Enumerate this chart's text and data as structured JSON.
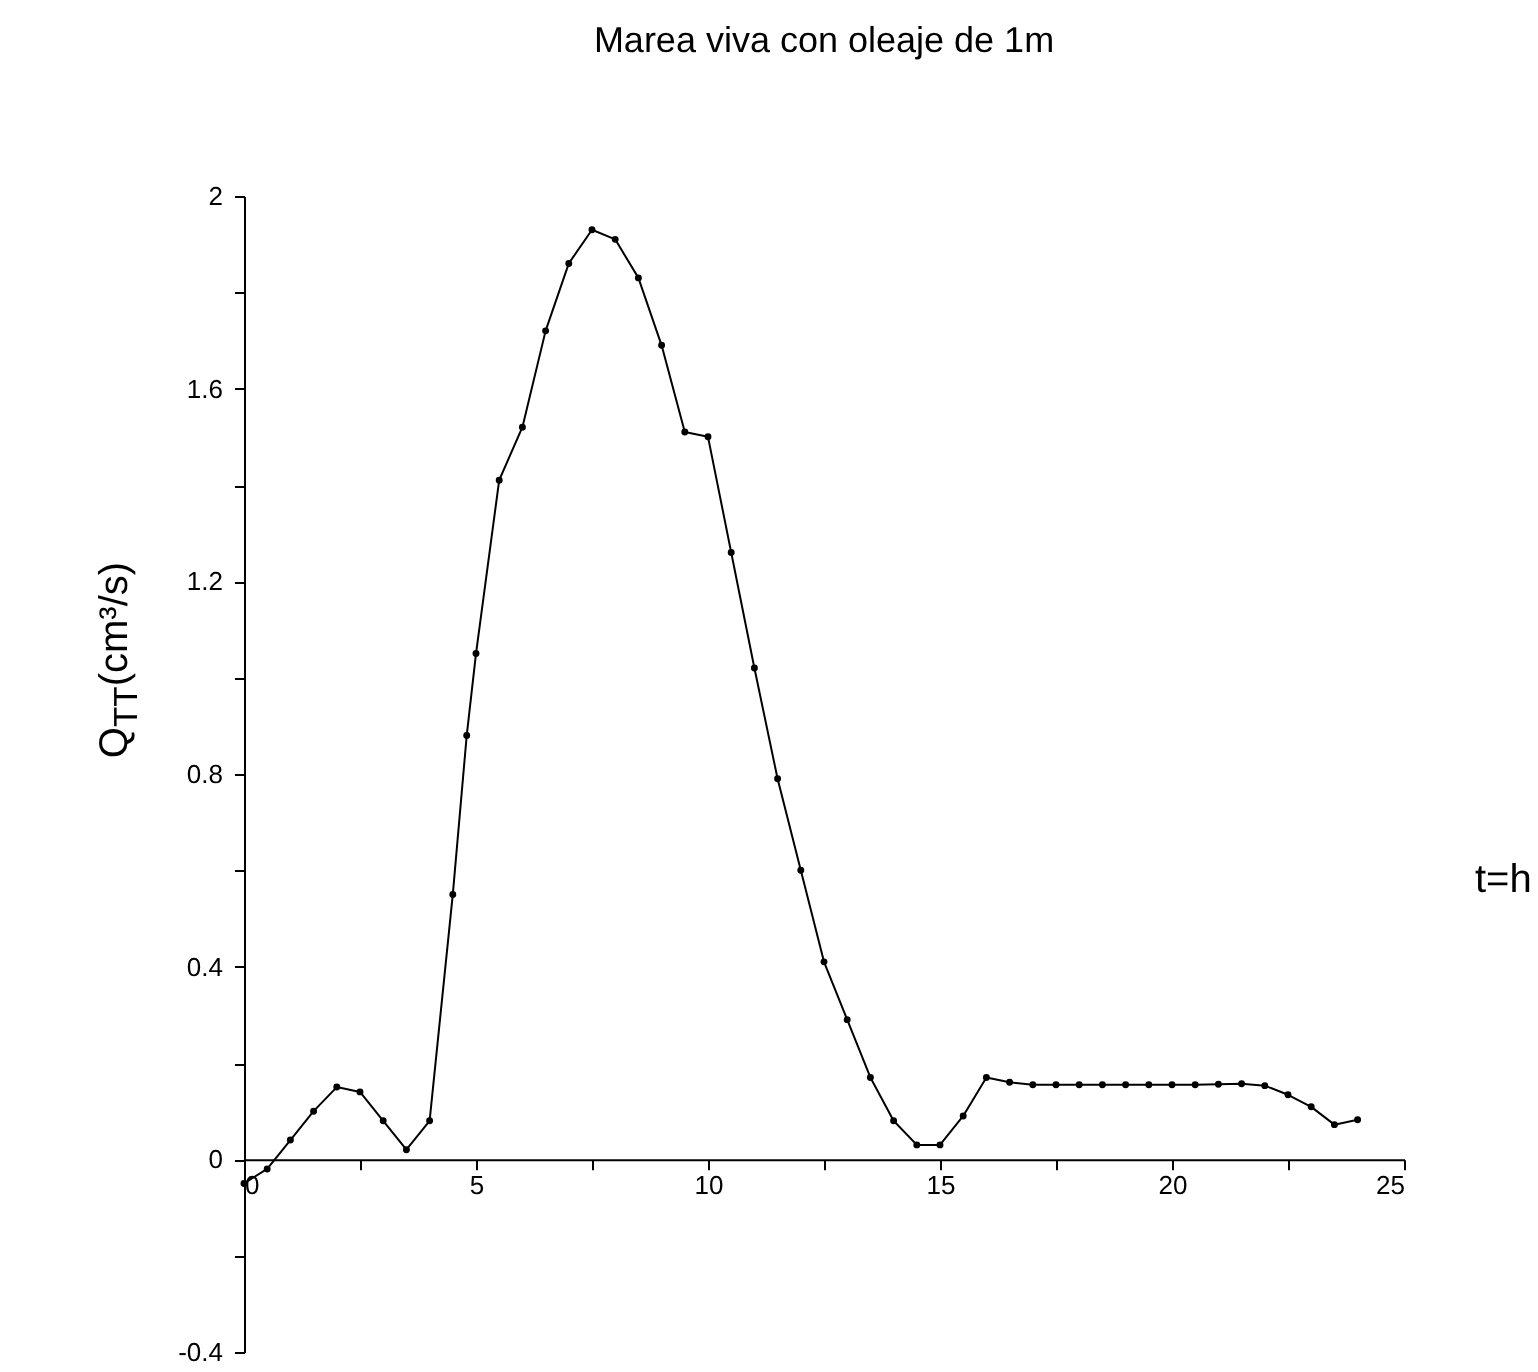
{
  "chart_data": {
    "type": "line",
    "title": "Marea viva con oleaje de 1m",
    "xlabel": "t=h",
    "ylabel": "Q$_{TT}$(cm³/s)",
    "x": [
      0,
      0.5,
      1,
      1.5,
      2,
      2.5,
      3,
      3.5,
      4,
      4.5,
      4.8,
      5,
      5.5,
      6,
      6.5,
      7,
      7.5,
      8,
      8.5,
      9,
      9.5,
      10,
      10.5,
      11,
      11.5,
      12,
      12.5,
      13,
      13.5,
      14,
      14.5,
      15,
      15.5,
      16,
      16.5,
      17,
      17.5,
      18,
      18.5,
      19,
      19.5,
      20,
      20.5,
      21,
      21.5,
      22,
      22.5,
      23,
      23.5,
      24
    ],
    "series": [
      {
        "color": "#000000",
        "values": [
          -0.05,
          -0.02,
          0.04,
          0.1,
          0.15,
          0.14,
          0.08,
          0.02,
          0.08,
          0.55,
          0.88,
          1.05,
          1.41,
          1.52,
          1.72,
          1.86,
          1.93,
          1.91,
          1.83,
          1.69,
          1.51,
          1.5,
          1.26,
          1.02,
          0.79,
          0.6,
          0.41,
          0.29,
          0.17,
          0.08,
          0.03,
          0.03,
          0.09,
          0.17,
          0.16,
          0.155,
          0.155,
          0.155,
          0.155,
          0.155,
          0.155,
          0.155,
          0.155,
          0.156,
          0.157,
          0.153,
          0.134,
          0.109,
          0.072,
          0.082
        ]
      }
    ],
    "xlim": [
      0,
      25
    ],
    "ylim": [
      -0.4,
      2
    ],
    "xticks": [
      0,
      {
        "value": 2.5,
        "label": null
      },
      5,
      {
        "value": 7.5,
        "label": null
      },
      10,
      {
        "value": 12.5,
        "label": null
      },
      15,
      {
        "value": 17.5,
        "label": null
      },
      20,
      {
        "value": 22.5,
        "label": null
      },
      25
    ],
    "yticks": [
      -0.4,
      {
        "value": -0.2,
        "label": null
      },
      0,
      {
        "value": 0.2,
        "label": null
      },
      0.4,
      {
        "value": 0.6,
        "label": null
      },
      0.8,
      {
        "value": 1,
        "label": null
      },
      1.2,
      {
        "value": 1.4,
        "label": null
      },
      1.6,
      {
        "value": 1.8,
        "label": null
      },
      2
    ],
    "grid": false,
    "legend": false,
    "marker": "circle",
    "line_style": "solid"
  }
}
